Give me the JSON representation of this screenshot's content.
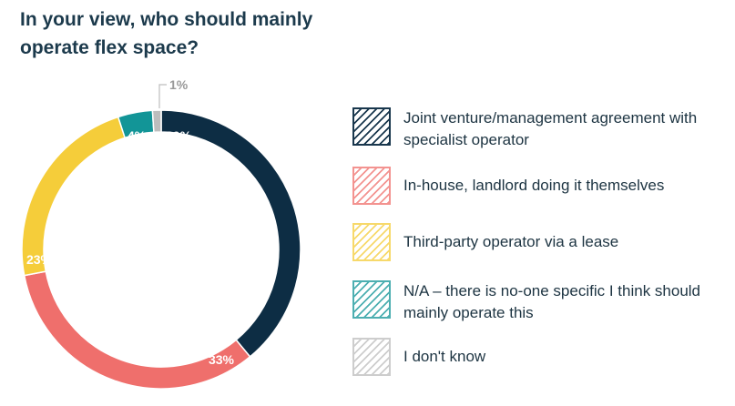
{
  "title": "In your view, who should mainly operate flex space?",
  "chart_data": {
    "type": "pie",
    "style": "donut",
    "legend_position": "right",
    "slices": [
      {
        "label": "Joint venture/management agreement with specialist operator",
        "value": 39,
        "display": "39%",
        "color": "#0d2d44"
      },
      {
        "label": "In-house, landlord doing it themselves",
        "value": 33,
        "display": "33%",
        "color": "#ef6f6c"
      },
      {
        "label": "Third-party operator via a lease",
        "value": 23,
        "display": "23%",
        "color": "#f5cd3a"
      },
      {
        "label": "N/A – there is no-one specific I think should mainly operate this",
        "value": 4,
        "display": "4%",
        "color": "#129597"
      },
      {
        "label": "I don't know",
        "value": 1,
        "display": "1%",
        "color": "#bdbdbd"
      }
    ]
  }
}
